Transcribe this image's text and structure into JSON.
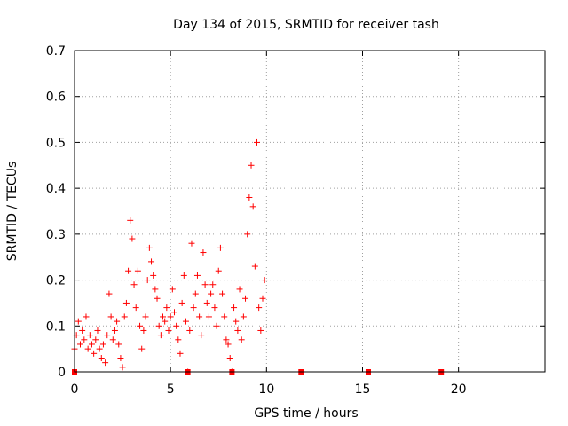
{
  "chart_data": {
    "type": "scatter",
    "title": "Day 134 of 2015, SRMTID for receiver tash",
    "xlabel": "GPS time / hours",
    "ylabel": "SRMTID / TECUs",
    "xlim": [
      0,
      24.5
    ],
    "ylim": [
      0,
      0.7
    ],
    "xticks": [
      0,
      5,
      10,
      15,
      20
    ],
    "yticks": [
      0,
      0.1,
      0.2,
      0.3,
      0.4,
      0.5,
      0.6,
      0.7
    ],
    "xtick_labels": [
      "0",
      "5",
      "10",
      "15",
      "20"
    ],
    "ytick_labels": [
      "0",
      "0.1",
      "0.2",
      "0.3",
      "0.4",
      "0.5",
      "0.6",
      "0.7"
    ],
    "grid": true,
    "marker": "+",
    "color": "#ff0000",
    "series": [
      {
        "name": "SRMTID",
        "points": [
          [
            0.0,
            0.05
          ],
          [
            0.1,
            0.08
          ],
          [
            0.2,
            0.11
          ],
          [
            0.3,
            0.06
          ],
          [
            0.4,
            0.09
          ],
          [
            0.5,
            0.07
          ],
          [
            0.6,
            0.12
          ],
          [
            0.7,
            0.05
          ],
          [
            0.8,
            0.08
          ],
          [
            0.9,
            0.06
          ],
          [
            1.0,
            0.04
          ],
          [
            1.1,
            0.07
          ],
          [
            1.2,
            0.09
          ],
          [
            1.3,
            0.05
          ],
          [
            1.4,
            0.03
          ],
          [
            1.5,
            0.06
          ],
          [
            1.6,
            0.02
          ],
          [
            1.7,
            0.08
          ],
          [
            1.8,
            0.17
          ],
          [
            1.9,
            0.12
          ],
          [
            2.0,
            0.07
          ],
          [
            2.1,
            0.09
          ],
          [
            2.2,
            0.11
          ],
          [
            2.3,
            0.06
          ],
          [
            2.4,
            0.03
          ],
          [
            2.5,
            0.01
          ],
          [
            2.6,
            0.12
          ],
          [
            2.7,
            0.15
          ],
          [
            2.8,
            0.22
          ],
          [
            2.9,
            0.33
          ],
          [
            3.0,
            0.29
          ],
          [
            3.1,
            0.19
          ],
          [
            3.2,
            0.14
          ],
          [
            3.3,
            0.22
          ],
          [
            3.4,
            0.1
          ],
          [
            3.5,
            0.05
          ],
          [
            3.6,
            0.09
          ],
          [
            3.7,
            0.12
          ],
          [
            3.8,
            0.2
          ],
          [
            3.9,
            0.27
          ],
          [
            4.0,
            0.24
          ],
          [
            4.1,
            0.21
          ],
          [
            4.2,
            0.18
          ],
          [
            4.3,
            0.16
          ],
          [
            4.4,
            0.1
          ],
          [
            4.5,
            0.08
          ],
          [
            4.6,
            0.12
          ],
          [
            4.7,
            0.11
          ],
          [
            4.8,
            0.14
          ],
          [
            4.9,
            0.09
          ],
          [
            5.0,
            0.12
          ],
          [
            5.1,
            0.18
          ],
          [
            5.2,
            0.13
          ],
          [
            5.3,
            0.1
          ],
          [
            5.4,
            0.07
          ],
          [
            5.5,
            0.04
          ],
          [
            5.6,
            0.15
          ],
          [
            5.7,
            0.21
          ],
          [
            5.8,
            0.11
          ],
          [
            5.9,
            0.0
          ],
          [
            6.0,
            0.09
          ],
          [
            6.1,
            0.28
          ],
          [
            6.2,
            0.14
          ],
          [
            6.3,
            0.17
          ],
          [
            6.4,
            0.21
          ],
          [
            6.5,
            0.12
          ],
          [
            6.6,
            0.08
          ],
          [
            6.7,
            0.26
          ],
          [
            6.8,
            0.19
          ],
          [
            6.9,
            0.15
          ],
          [
            7.0,
            0.12
          ],
          [
            7.1,
            0.17
          ],
          [
            7.2,
            0.19
          ],
          [
            7.3,
            0.14
          ],
          [
            7.4,
            0.1
          ],
          [
            7.5,
            0.22
          ],
          [
            7.6,
            0.27
          ],
          [
            7.7,
            0.17
          ],
          [
            7.8,
            0.12
          ],
          [
            7.9,
            0.07
          ],
          [
            8.0,
            0.06
          ],
          [
            8.1,
            0.03
          ],
          [
            8.2,
            0.0
          ],
          [
            8.3,
            0.14
          ],
          [
            8.4,
            0.11
          ],
          [
            8.5,
            0.09
          ],
          [
            8.6,
            0.18
          ],
          [
            8.7,
            0.07
          ],
          [
            8.8,
            0.12
          ],
          [
            8.9,
            0.16
          ],
          [
            9.0,
            0.3
          ],
          [
            9.1,
            0.38
          ],
          [
            9.2,
            0.45
          ],
          [
            9.3,
            0.36
          ],
          [
            9.4,
            0.23
          ],
          [
            9.5,
            0.5
          ],
          [
            9.6,
            0.14
          ],
          [
            9.7,
            0.09
          ],
          [
            9.8,
            0.16
          ],
          [
            9.9,
            0.2
          ]
        ]
      }
    ],
    "markers": [
      {
        "x": 0.0,
        "y": 0.0
      },
      {
        "x": 5.9,
        "y": 0.0
      },
      {
        "x": 8.2,
        "y": 0.0
      },
      {
        "x": 11.8,
        "y": 0.0
      },
      {
        "x": 15.3,
        "y": 0.0
      },
      {
        "x": 19.1,
        "y": 0.0
      }
    ]
  }
}
